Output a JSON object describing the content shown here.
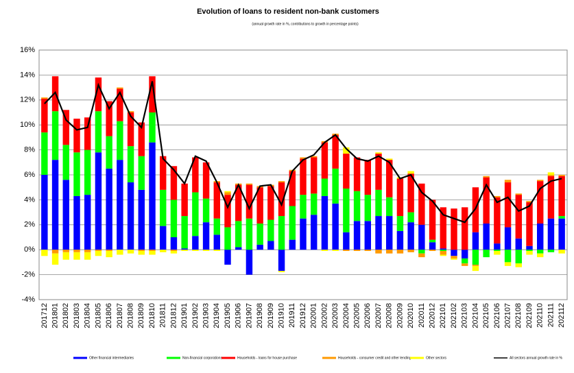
{
  "chart_data": {
    "type": "bar",
    "stacked": true,
    "title": "Evolution of loans to resident non-bank customers",
    "subtitle": "(annual growth rate in %, contributions to growth in percentage points)",
    "categories": [
      "201712",
      "201801",
      "201802",
      "201803",
      "201804",
      "201805",
      "201806",
      "201807",
      "201808",
      "201809",
      "201810",
      "201811",
      "201812",
      "201901",
      "201902",
      "201903",
      "201904",
      "201905",
      "201906",
      "201907",
      "201908",
      "201909",
      "201910",
      "201911",
      "201912",
      "202001",
      "202002",
      "202003",
      "202004",
      "202005",
      "202006",
      "202007",
      "202008",
      "202009",
      "202010",
      "202011",
      "202012",
      "202101",
      "202102",
      "202103",
      "202104",
      "202105",
      "202106",
      "202107",
      "202108",
      "202109",
      "202110",
      "202111",
      "202112"
    ],
    "series": [
      {
        "name": "Other financial intermediaries",
        "color": "#0000ff",
        "values": [
          6.0,
          7.2,
          5.6,
          4.3,
          4.4,
          7.8,
          6.5,
          7.2,
          5.4,
          4.8,
          8.6,
          1.9,
          1.0,
          0.1,
          1.1,
          2.2,
          1.2,
          -1.2,
          0.2,
          -2.0,
          0.4,
          0.7,
          -1.7,
          0.8,
          2.5,
          2.8,
          4.3,
          3.7,
          1.4,
          2.3,
          2.3,
          2.7,
          2.7,
          1.5,
          2.2,
          2.0,
          0.6,
          0.1,
          -0.5,
          -0.7,
          1.4,
          2.1,
          0.5,
          1.8,
          0.9,
          0.3,
          2.1,
          2.5,
          2.5
        ]
      },
      {
        "name": "Non-financial corporations",
        "color": "#00ff00",
        "values": [
          3.4,
          3.9,
          2.8,
          3.5,
          3.6,
          3.3,
          2.6,
          3.1,
          2.9,
          2.7,
          2.4,
          2.9,
          3.0,
          2.6,
          3.5,
          1.9,
          1.3,
          1.8,
          2.1,
          2.5,
          1.7,
          1.7,
          2.7,
          2.7,
          1.9,
          1.7,
          1.4,
          2.8,
          3.5,
          2.4,
          2.1,
          2.1,
          1.5,
          1.2,
          0.8,
          -0.3,
          0.2,
          -0.1,
          0.0,
          -0.4,
          -1.2,
          -0.6,
          -0.1,
          -1.0,
          -1.1,
          -0.1,
          -0.3,
          -0.2,
          0.2
        ]
      },
      {
        "name": "Households - loans for house purchase",
        "color": "#ff0000",
        "values": [
          2.7,
          2.8,
          2.8,
          2.7,
          2.6,
          2.7,
          2.8,
          2.6,
          2.7,
          2.7,
          2.9,
          2.7,
          2.7,
          2.6,
          2.8,
          2.9,
          2.9,
          2.6,
          2.9,
          2.7,
          2.9,
          2.7,
          2.7,
          2.8,
          2.9,
          2.9,
          2.9,
          2.7,
          2.8,
          2.7,
          2.8,
          2.9,
          3.0,
          3.0,
          3.1,
          3.3,
          3.2,
          3.3,
          3.3,
          3.4,
          3.6,
          3.7,
          3.7,
          3.6,
          3.5,
          3.5,
          3.4,
          3.4,
          3.2
        ]
      },
      {
        "name": "Households - consumer credit and other lending",
        "color": "#ff9900",
        "values": [
          0.1,
          -0.3,
          -0.2,
          -0.2,
          -0.2,
          -0.1,
          -0.1,
          0.1,
          0.1,
          -0.1,
          -0.1,
          0.0,
          -0.1,
          0.0,
          0.0,
          0.0,
          0.1,
          0.2,
          0.1,
          0.1,
          0.1,
          0.1,
          0.1,
          0.1,
          0.1,
          0.1,
          0.1,
          0.1,
          -0.1,
          -0.1,
          -0.1,
          -0.3,
          -0.3,
          -0.3,
          -0.2,
          -0.3,
          -0.1,
          -0.3,
          -0.2,
          -0.2,
          -0.1,
          0.1,
          0.1,
          0.2,
          0.1,
          0.1,
          0.1,
          0.1,
          0.1
        ]
      },
      {
        "name": "Other sectors",
        "color": "#ffff00",
        "values": [
          -0.5,
          -0.9,
          -0.6,
          -0.6,
          -0.6,
          -0.4,
          -0.5,
          -0.4,
          -0.3,
          -0.3,
          -0.3,
          -0.2,
          -0.2,
          -0.1,
          -0.1,
          -0.1,
          -0.1,
          0.1,
          0.0,
          0.0,
          0.0,
          0.0,
          -0.1,
          0.0,
          0.0,
          0.0,
          -0.1,
          -0.1,
          0.5,
          0.0,
          0.0,
          0.1,
          0.1,
          0.1,
          0.2,
          0.0,
          0.0,
          -0.1,
          -0.1,
          0.0,
          -0.4,
          0.0,
          -0.3,
          -0.3,
          -0.3,
          -0.3,
          -0.3,
          0.2,
          -0.3
        ]
      },
      {
        "name": "All sectors annual growth rate in %",
        "color": "#000000",
        "type": "line",
        "values": [
          11.7,
          12.6,
          10.4,
          9.6,
          9.8,
          13.2,
          11.3,
          12.6,
          10.7,
          9.8,
          13.5,
          7.3,
          6.4,
          5.3,
          7.5,
          7.1,
          5.4,
          3.4,
          5.2,
          3.3,
          5.1,
          5.2,
          3.6,
          6.3,
          7.2,
          7.6,
          8.6,
          9.2,
          8.1,
          7.3,
          7.1,
          7.5,
          7.0,
          5.7,
          6.0,
          4.6,
          3.9,
          2.8,
          2.5,
          2.2,
          3.3,
          5.2,
          3.8,
          4.2,
          3.1,
          3.5,
          4.9,
          5.5,
          5.7
        ]
      }
    ],
    "ylim": [
      -4,
      16
    ],
    "yticks": [
      {
        "value": -4,
        "label": "-4%"
      },
      {
        "value": -2,
        "label": "-2%"
      },
      {
        "value": 0,
        "label": "0%"
      },
      {
        "value": 2,
        "label": "2%"
      },
      {
        "value": 4,
        "label": "4%"
      },
      {
        "value": 6,
        "label": "6%"
      },
      {
        "value": 8,
        "label": "8%"
      },
      {
        "value": 10,
        "label": "10%"
      },
      {
        "value": 12,
        "label": "12%"
      },
      {
        "value": 14,
        "label": "14%"
      },
      {
        "value": 16,
        "label": "16%"
      }
    ],
    "grid": true,
    "legend": "bottom"
  }
}
